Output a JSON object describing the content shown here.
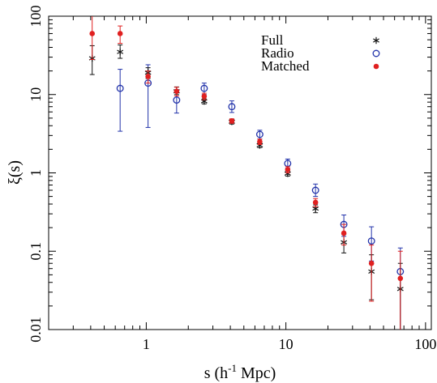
{
  "chart_data": {
    "type": "scatter",
    "xlabel_main": "s (h",
    "xlabel_sup": "-1",
    "xlabel_rest": " Mpc)",
    "ylabel": "ξ(s)",
    "xscale": "log",
    "yscale": "log",
    "xlim": [
      0.2,
      110
    ],
    "ylim": [
      0.01,
      100
    ],
    "x_ticks": [
      {
        "value": 1,
        "label": "1"
      },
      {
        "value": 10,
        "label": "10"
      },
      {
        "value": 100,
        "label": "100"
      }
    ],
    "y_ticks": [
      {
        "value": 0.01,
        "label": "0.01"
      },
      {
        "value": 0.1,
        "label": "0.1"
      },
      {
        "value": 1,
        "label": "1"
      },
      {
        "value": 10,
        "label": "10"
      },
      {
        "value": 100,
        "label": "100"
      }
    ],
    "legend_position": "top-right",
    "series": [
      {
        "name": "Full",
        "marker": "asterisk",
        "color": "#111111",
        "points": [
          {
            "x": 0.41,
            "y": 29,
            "lo": 18,
            "hi": 42
          },
          {
            "x": 0.65,
            "y": 35,
            "lo": 29,
            "hi": 43
          },
          {
            "x": 1.03,
            "y": 19,
            "lo": 16,
            "hi": 22
          },
          {
            "x": 1.65,
            "y": 11,
            "lo": 10,
            "hi": 12.5
          },
          {
            "x": 2.6,
            "y": 8.2,
            "lo": 7.6,
            "hi": 8.8
          },
          {
            "x": 4.1,
            "y": 4.5,
            "lo": 4.2,
            "hi": 4.8
          },
          {
            "x": 6.5,
            "y": 2.25,
            "lo": 2.1,
            "hi": 2.4
          },
          {
            "x": 10.3,
            "y": 0.98,
            "lo": 0.91,
            "hi": 1.05
          },
          {
            "x": 16.3,
            "y": 0.35,
            "lo": 0.31,
            "hi": 0.39
          },
          {
            "x": 26,
            "y": 0.13,
            "lo": 0.095,
            "hi": 0.165
          },
          {
            "x": 41,
            "y": 0.055,
            "lo": 0.024,
            "hi": 0.09
          },
          {
            "x": 66,
            "y": 0.033,
            "lo": 0.01,
            "hi": 0.07
          }
        ]
      },
      {
        "name": "Radio",
        "marker": "circle",
        "color": "#2233aa",
        "points": [
          {
            "x": 0.65,
            "y": 12,
            "lo": 3.4,
            "hi": 21
          },
          {
            "x": 1.03,
            "y": 14,
            "lo": 3.8,
            "hi": 24
          },
          {
            "x": 1.65,
            "y": 8.5,
            "lo": 5.8,
            "hi": 11.5
          },
          {
            "x": 2.6,
            "y": 12,
            "lo": 10,
            "hi": 14
          },
          {
            "x": 4.1,
            "y": 7,
            "lo": 5.9,
            "hi": 8.3
          },
          {
            "x": 6.5,
            "y": 3.1,
            "lo": 2.7,
            "hi": 3.5
          },
          {
            "x": 10.3,
            "y": 1.32,
            "lo": 1.15,
            "hi": 1.5
          },
          {
            "x": 16.3,
            "y": 0.6,
            "lo": 0.5,
            "hi": 0.72
          },
          {
            "x": 26,
            "y": 0.22,
            "lo": 0.155,
            "hi": 0.29
          },
          {
            "x": 41,
            "y": 0.135,
            "lo": 0.075,
            "hi": 0.205
          },
          {
            "x": 66,
            "y": 0.055,
            "lo": 0.01,
            "hi": 0.11
          }
        ]
      },
      {
        "name": "Matched",
        "marker": "dot",
        "color": "#e02020",
        "points": [
          {
            "x": 0.41,
            "y": 60,
            "lo": 28,
            "hi": 100
          },
          {
            "x": 0.65,
            "y": 60,
            "lo": 45,
            "hi": 75
          },
          {
            "x": 1.03,
            "y": 17,
            "lo": 14,
            "hi": 20
          },
          {
            "x": 1.65,
            "y": 11,
            "lo": 9.6,
            "hi": 12.4
          },
          {
            "x": 2.6,
            "y": 9.5,
            "lo": 8.6,
            "hi": 10.4
          },
          {
            "x": 4.1,
            "y": 4.6,
            "lo": 4.3,
            "hi": 4.9
          },
          {
            "x": 6.5,
            "y": 2.5,
            "lo": 2.3,
            "hi": 2.7
          },
          {
            "x": 10.3,
            "y": 1.1,
            "lo": 1.0,
            "hi": 1.2
          },
          {
            "x": 16.3,
            "y": 0.42,
            "lo": 0.37,
            "hi": 0.47
          },
          {
            "x": 26,
            "y": 0.17,
            "lo": 0.12,
            "hi": 0.22
          },
          {
            "x": 41,
            "y": 0.07,
            "lo": 0.023,
            "hi": 0.12
          },
          {
            "x": 66,
            "y": 0.045,
            "lo": 0.01,
            "hi": 0.1
          }
        ]
      }
    ]
  }
}
